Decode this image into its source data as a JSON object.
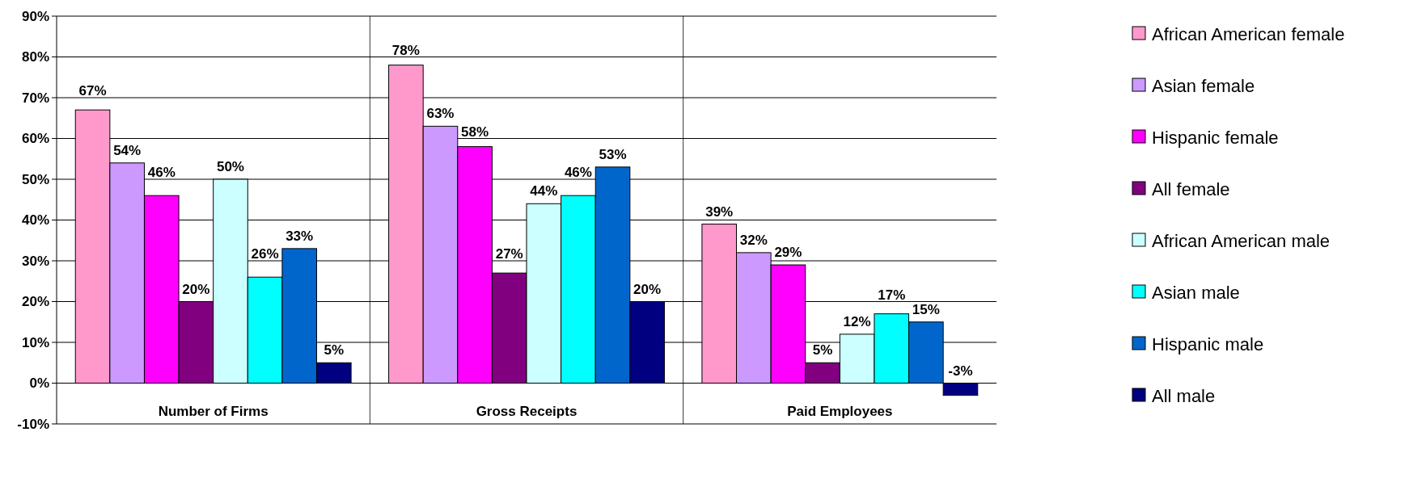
{
  "chart_data": {
    "type": "bar",
    "categories": [
      "Number of Firms",
      "Gross Receipts",
      "Paid Employees"
    ],
    "series": [
      {
        "name": "African American female",
        "color": "#ff99cc",
        "values": [
          67,
          78,
          39
        ],
        "value_labels": [
          "67%",
          "78%",
          "39%"
        ]
      },
      {
        "name": "Asian female",
        "color": "#cc99ff",
        "values": [
          54,
          63,
          32
        ],
        "value_labels": [
          "54%",
          "63%",
          "32%"
        ]
      },
      {
        "name": "Hispanic female",
        "color": "#ff00ff",
        "values": [
          46,
          58,
          29
        ],
        "value_labels": [
          "46%",
          "58%",
          "29%"
        ]
      },
      {
        "name": "All female",
        "color": "#800080",
        "values": [
          20,
          27,
          5
        ],
        "value_labels": [
          "20%",
          "27%",
          "5%"
        ]
      },
      {
        "name": "African American male",
        "color": "#ccffff",
        "values": [
          50,
          44,
          12
        ],
        "value_labels": [
          "50%",
          "44%",
          "12%"
        ]
      },
      {
        "name": "Asian male",
        "color": "#00ffff",
        "values": [
          26,
          46,
          17
        ],
        "value_labels": [
          "26%",
          "46%",
          "17%"
        ]
      },
      {
        "name": "Hispanic male",
        "color": "#0066cc",
        "values": [
          33,
          53,
          15
        ],
        "value_labels": [
          "33%",
          "53%",
          "15%"
        ]
      },
      {
        "name": "All male",
        "color": "#000080",
        "values": [
          5,
          20,
          -3
        ],
        "value_labels": [
          "5%",
          "20%",
          "-3%"
        ]
      }
    ],
    "ylim": [
      -10,
      90
    ],
    "yticks": [
      {
        "value": -10,
        "label": "-10%"
      },
      {
        "value": 0,
        "label": "0%"
      },
      {
        "value": 10,
        "label": "10%"
      },
      {
        "value": 20,
        "label": "20%"
      },
      {
        "value": 30,
        "label": "30%"
      },
      {
        "value": 40,
        "label": "40%"
      },
      {
        "value": 50,
        "label": "50%"
      },
      {
        "value": 60,
        "label": "60%"
      },
      {
        "value": 70,
        "label": "70%"
      },
      {
        "value": 80,
        "label": "80%"
      },
      {
        "value": 90,
        "label": "90%"
      }
    ],
    "grid": "y",
    "legend": "right"
  }
}
